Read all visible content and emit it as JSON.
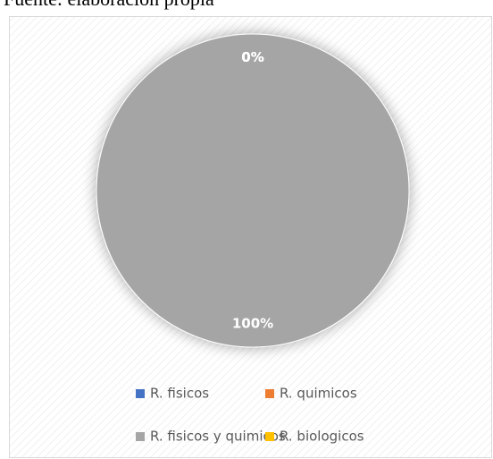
{
  "chart_data": {
    "type": "pie",
    "note": "Fuente: elaboración propia",
    "categories": [
      "R. fisicos",
      "R. quimicos",
      "R. fisicos y quimicos",
      "R. biologicos"
    ],
    "values": [
      0,
      0,
      100,
      0
    ],
    "value_labels": [
      "0%",
      "0%",
      "100%",
      "0%"
    ],
    "colors": [
      "#4472c4",
      "#ed7d31",
      "#a5a5a5",
      "#ffc000"
    ],
    "legend": "bottom"
  }
}
